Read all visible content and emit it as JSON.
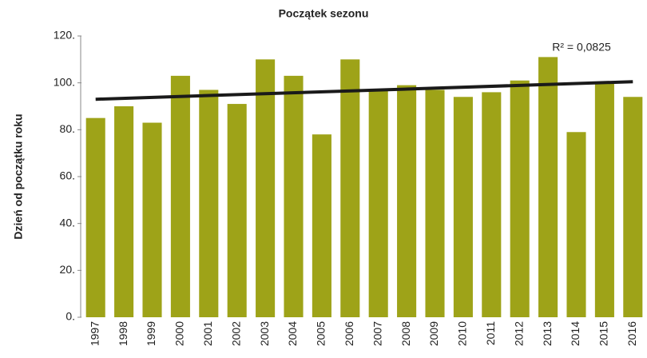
{
  "chart_data": {
    "type": "bar",
    "title": "Początek sezonu",
    "y_label": "Dzień od początku roku",
    "categories": [
      "1997",
      "1998",
      "1999",
      "2000",
      "2001",
      "2002",
      "2003",
      "2004",
      "2005",
      "2006",
      "2007",
      "2008",
      "2009",
      "2010",
      "2011",
      "2012",
      "2013",
      "2014",
      "2015",
      "2016"
    ],
    "values": [
      85,
      90,
      83,
      103,
      97,
      91,
      110,
      103,
      78,
      110,
      97,
      99,
      97,
      94,
      96,
      101,
      111,
      79,
      100,
      94
    ],
    "color": "#9ea318",
    "ylim": [
      0,
      120
    ],
    "yticks": [
      {
        "value": 0,
        "label": "0."
      },
      {
        "value": 20,
        "label": "20."
      },
      {
        "value": 40,
        "label": "40."
      },
      {
        "value": 60,
        "label": "60."
      },
      {
        "value": 80,
        "label": "80."
      },
      {
        "value": 100,
        "label": "100."
      },
      {
        "value": 120,
        "label": "120."
      }
    ],
    "trend": {
      "start": 93,
      "end": 100.5,
      "color": "#1a1a1a"
    },
    "annotation": "R² = 0,0825"
  }
}
